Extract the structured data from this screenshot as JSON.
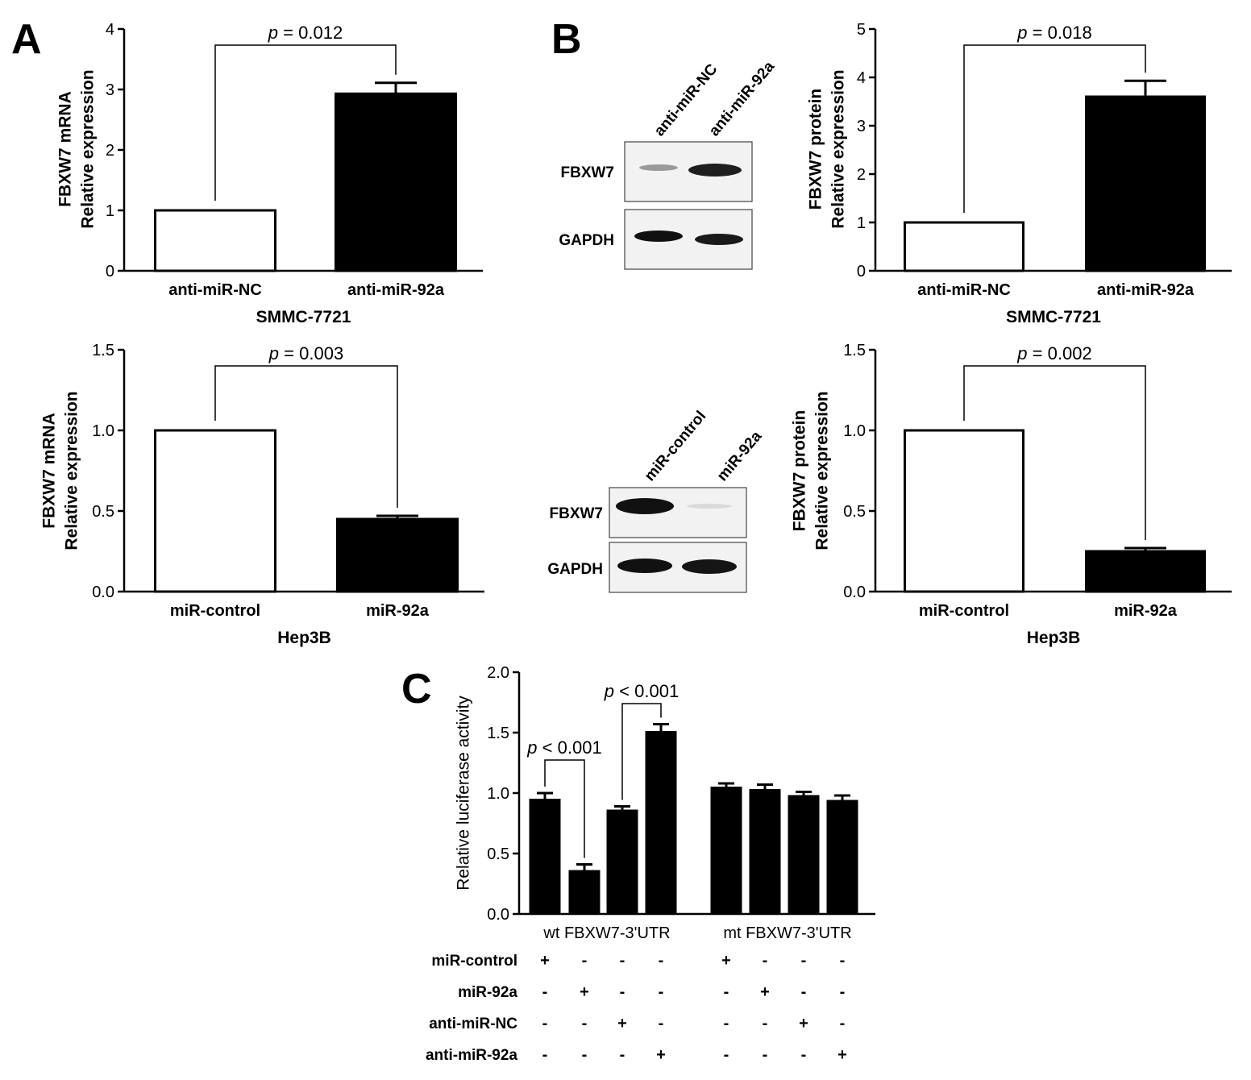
{
  "panel_labels": {
    "a": "A",
    "b": "B",
    "c": "C"
  },
  "western_blots": [
    {
      "lanes": [
        "anti-miR-NC",
        "anti-miR-92a"
      ],
      "rows": [
        "FBXW7",
        "GAPDH"
      ]
    },
    {
      "lanes": [
        "miR-control",
        "miR-92a"
      ],
      "rows": [
        "FBXW7",
        "GAPDH"
      ]
    }
  ],
  "table": {
    "row_labels": [
      "miR-control",
      "miR-92a",
      "anti-miR-NC",
      "anti-miR-92a"
    ],
    "cells": [
      [
        "+",
        "-",
        "-",
        "-",
        "+",
        "-",
        "-",
        "-"
      ],
      [
        "-",
        "+",
        "-",
        "-",
        "-",
        "+",
        "-",
        "-"
      ],
      [
        "-",
        "-",
        "+",
        "-",
        "-",
        "-",
        "+",
        "-"
      ],
      [
        "-",
        "-",
        "-",
        "+",
        "-",
        "-",
        "-",
        "+"
      ]
    ]
  },
  "colors": {
    "filled_bar": "#000000",
    "open_bar": "#ffffff",
    "axis": "#000000",
    "bracket": "#000000"
  },
  "chart_data": [
    {
      "type": "bar",
      "ylabel": [
        "FBXW7 mRNA",
        "Relative expression"
      ],
      "xlabel": "SMMC-7721",
      "categories": [
        "anti-miR-NC",
        "anti-miR-92a"
      ],
      "values": [
        1.0,
        2.93
      ],
      "errors": [
        0,
        0.18
      ],
      "fills": [
        "open",
        "filled"
      ],
      "ylim": [
        0,
        4
      ],
      "yticks": [
        "0",
        "1",
        "2",
        "3",
        "4"
      ],
      "annotation": {
        "italic": "p",
        "text": " = 0.012"
      }
    },
    {
      "type": "bar",
      "ylabel": [
        "FBXW7 protein",
        "Relative expression"
      ],
      "xlabel": "SMMC-7721",
      "categories": [
        "anti-miR-NC",
        "anti-miR-92a"
      ],
      "values": [
        1.0,
        3.6
      ],
      "errors": [
        0,
        0.33
      ],
      "fills": [
        "open",
        "filled"
      ],
      "ylim": [
        0,
        5
      ],
      "yticks": [
        "0",
        "1",
        "2",
        "3",
        "4",
        "5"
      ],
      "annotation": {
        "italic": "p",
        "text": " = 0.018"
      }
    },
    {
      "type": "bar",
      "ylabel": [
        "FBXW7 mRNA",
        "Relative expression"
      ],
      "xlabel": "Hep3B",
      "categories": [
        "miR-control",
        "miR-92a"
      ],
      "values": [
        1.0,
        0.45
      ],
      "errors": [
        0,
        0.02
      ],
      "fills": [
        "open",
        "filled"
      ],
      "ylim": [
        0,
        1.5
      ],
      "yticks": [
        "0.0",
        "0.5",
        "1.0",
        "1.5"
      ],
      "annotation": {
        "italic": "p",
        "text": " = 0.003"
      }
    },
    {
      "type": "bar",
      "ylabel": [
        "FBXW7 protein",
        "Relative expression"
      ],
      "xlabel": "Hep3B",
      "categories": [
        "miR-control",
        "miR-92a"
      ],
      "values": [
        1.0,
        0.25
      ],
      "errors": [
        0,
        0.02
      ],
      "fills": [
        "open",
        "filled"
      ],
      "ylim": [
        0,
        1.5
      ],
      "yticks": [
        "0.0",
        "0.5",
        "1.0",
        "1.5"
      ],
      "annotation": {
        "italic": "p",
        "text": " = 0.002"
      }
    },
    {
      "type": "bar",
      "ylabel": [
        "Relative luciferase activity"
      ],
      "group_labels": [
        "wt FBXW7-3'UTR",
        "mt FBXW7-3'UTR"
      ],
      "values": [
        0.95,
        0.36,
        0.86,
        1.51,
        1.05,
        1.03,
        0.98,
        0.94
      ],
      "errors": [
        0.05,
        0.05,
        0.03,
        0.06,
        0.03,
        0.04,
        0.03,
        0.04
      ],
      "ylim": [
        0,
        2.0
      ],
      "yticks": [
        "0.0",
        "0.5",
        "1.0",
        "1.5",
        "2.0"
      ],
      "annotations": [
        {
          "italic": "p",
          "text": " < 0.001",
          "bars": [
            0,
            1
          ]
        },
        {
          "italic": "p",
          "text": " < 0.001",
          "bars": [
            2,
            3
          ]
        }
      ]
    }
  ]
}
